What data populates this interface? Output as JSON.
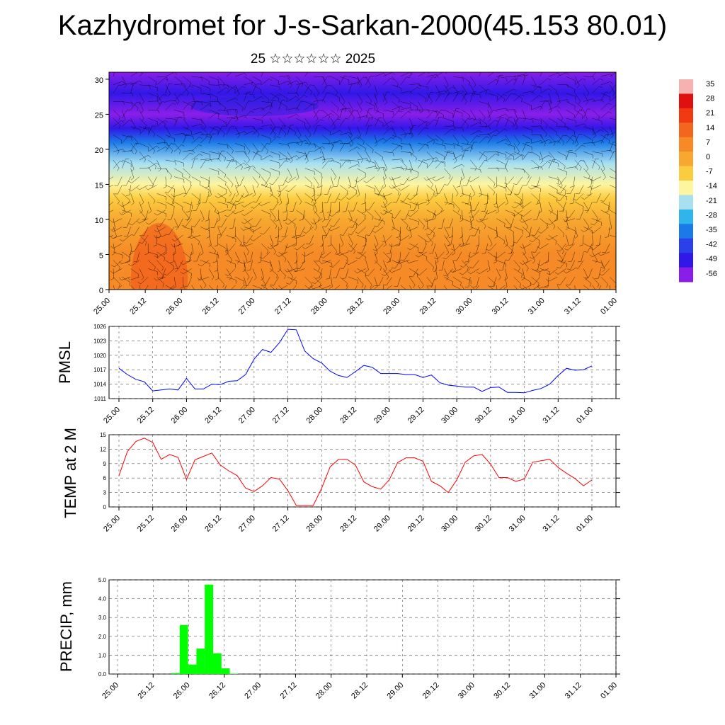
{
  "header": {
    "title": "Kazhydromet for J-s-Sarkan-2000(45.153 80.01)",
    "subtitle": "25 ☆☆☆☆☆☆ 2025"
  },
  "time_labels": [
    "25.00",
    "25.12",
    "26.00",
    "26.12",
    "27.00",
    "27.12",
    "28.00",
    "28.12",
    "29.00",
    "29.12",
    "30.00",
    "30.12",
    "31.00",
    "31.12",
    "01.00"
  ],
  "colors": {
    "pmsl_line": "#0000ff",
    "temp_line": "#ff0000",
    "precip_bar": "#00ff00"
  },
  "chart_data": [
    {
      "type": "heatmap",
      "name_note": "",
      "y_ticks": [
        0,
        5,
        10,
        15,
        20,
        25,
        30
      ],
      "ylim": [
        0,
        31
      ],
      "colorbar": {
        "labels": [
          "35",
          "28",
          "21",
          "14",
          "7",
          "0",
          "-7",
          "-14",
          "-21",
          "-28",
          "-35",
          "-42",
          "-49",
          "-56"
        ],
        "colors": [
          "#f7b1b1",
          "#e01010",
          "#f03a12",
          "#f3661e",
          "#f58a26",
          "#f7a830",
          "#fccc40",
          "#fdf5a0",
          "#a8e0f0",
          "#30b4ec",
          "#1b7ae8",
          "#2a40e8",
          "#3018e8",
          "#8a1ee8"
        ]
      },
      "temperature_profile": [
        {
          "level": 0,
          "value": 10
        },
        {
          "level": 5,
          "value": 6
        },
        {
          "level": 10,
          "value": 2
        },
        {
          "level": 13,
          "value": -4
        },
        {
          "level": 15,
          "value": -12
        },
        {
          "level": 18,
          "value": -24
        },
        {
          "level": 21,
          "value": -36
        },
        {
          "level": 23,
          "value": -48
        },
        {
          "level": 25,
          "value": -56
        },
        {
          "level": 28,
          "value": -52
        },
        {
          "level": 31,
          "value": -58
        }
      ]
    },
    {
      "type": "line",
      "ylabel": "PMSL",
      "y_ticks": [
        "1011",
        "1014",
        "1017",
        "1020",
        "1023",
        "1026"
      ],
      "ylim": [
        1011,
        1026
      ],
      "series": [
        {
          "values": [
            1017.3,
            1016.0,
            1015.0,
            1014.5,
            1012.6,
            1012.8,
            1013.0,
            1012.8,
            1015.2,
            1013.0,
            1013.0,
            1014.0,
            1013.9,
            1014.6,
            1014.7,
            1016.0,
            1019.2,
            1021.2,
            1020.6,
            1022.6,
            1025.4,
            1025.3,
            1020.9,
            1019.3,
            1018.4,
            1016.7,
            1015.8,
            1015.4,
            1016.6,
            1017.9,
            1017.5,
            1016.2,
            1016.2,
            1016.2,
            1016.0,
            1016.0,
            1015.4,
            1015.9,
            1014.3,
            1013.8,
            1013.6,
            1013.4,
            1013.4,
            1012.5,
            1013.3,
            1013.4,
            1012.3,
            1012.3,
            1012.2,
            1012.7,
            1013.1,
            1014.0,
            1015.8,
            1017.3,
            1016.9,
            1017.0,
            1017.8
          ]
        }
      ]
    },
    {
      "type": "line",
      "ylabel": "TEMP at 2 M",
      "y_ticks": [
        "0",
        "3",
        "6",
        "9",
        "12",
        "15"
      ],
      "ylim": [
        0,
        15
      ],
      "series": [
        {
          "values": [
            6.5,
            11.5,
            13.6,
            14.3,
            13.4,
            9.9,
            10.9,
            10.3,
            5.7,
            9.8,
            10.5,
            11.2,
            8.7,
            7.5,
            6.5,
            3.9,
            3.2,
            4.4,
            6.1,
            5.8,
            3.4,
            0.3,
            0.3,
            0.3,
            3.9,
            8.3,
            9.9,
            9.9,
            8.7,
            5.2,
            4.2,
            3.7,
            5.6,
            9.2,
            10.2,
            10.2,
            9.5,
            5.3,
            4.4,
            3.0,
            5.6,
            9.3,
            10.6,
            10.9,
            8.9,
            6.1,
            6.1,
            5.3,
            5.8,
            9.3,
            9.6,
            9.9,
            8.2,
            7.0,
            5.9,
            4.4,
            5.6
          ]
        }
      ]
    },
    {
      "type": "bar",
      "ylabel": "PRECIP, mm",
      "y_ticks": [
        "0.0",
        "1.0",
        "2.0",
        "3.0",
        "4.0",
        "5.0"
      ],
      "ylim": [
        0,
        5
      ],
      "bars": [
        {
          "value": 0.05
        },
        {
          "value": 2.6
        },
        {
          "value": 0.5
        },
        {
          "value": 1.35
        },
        {
          "value": 4.75
        },
        {
          "value": 1.1
        },
        {
          "value": 0.3
        },
        {
          "value": 0.02
        }
      ]
    }
  ]
}
